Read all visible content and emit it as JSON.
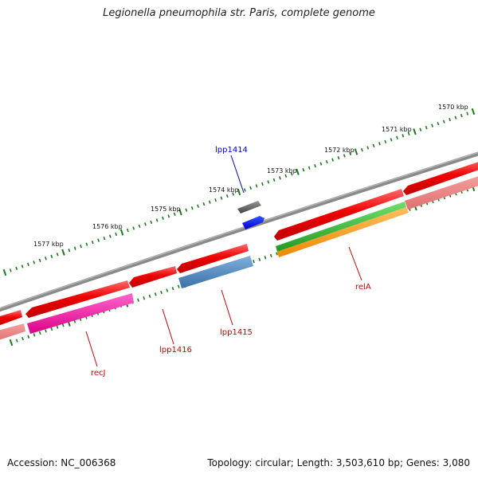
{
  "header": {
    "title": "Legionella pneumophila str. Paris, complete genome"
  },
  "footer": {
    "accession": "Accession: NC_006368",
    "summary": "Topology: circular; Length: 3,503,610 bp; Genes: 3,080"
  },
  "ruler": {
    "ticks": [
      {
        "label": "1570 kbp"
      },
      {
        "label": "1571 kbp"
      },
      {
        "label": "1572 kbp"
      },
      {
        "label": "1573 kbp"
      },
      {
        "label": "1574 kbp"
      },
      {
        "label": "1575 kbp"
      },
      {
        "label": "1576 kbp"
      },
      {
        "label": "1577 kbp"
      }
    ]
  },
  "genes": {
    "lpp1414": "lpp1414",
    "lpp1415": "lpp1415",
    "lpp1416": "lpp1416",
    "relA": "relA",
    "recJ": "recJ"
  },
  "colors": {
    "backbone": "#808080",
    "cds_reverse": "#ee0000",
    "cds_forward_light": "#f08080",
    "tick": "#1a7a1a",
    "label_forward": "#0000cc",
    "label_reverse": "#cc0000",
    "gray_gene": "#555555",
    "blue_gene": "#0000ee",
    "steel_gene": "#4682b4",
    "green_gene": "#33bb33",
    "orange_gene": "#ff9900",
    "magenta_gene": "#ee1199"
  }
}
